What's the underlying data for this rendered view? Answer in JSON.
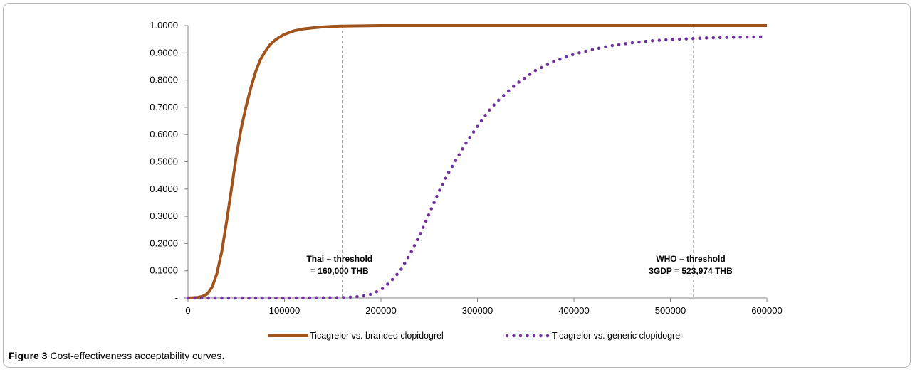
{
  "chart_data": {
    "type": "line",
    "title": "",
    "xlabel": "",
    "ylabel": "",
    "xlim": [
      0,
      600000
    ],
    "ylim": [
      0,
      1
    ],
    "x_ticks": [
      0,
      100000,
      200000,
      300000,
      400000,
      500000,
      600000
    ],
    "x_tick_labels": [
      "0",
      "100000",
      "200000",
      "300000",
      "400000",
      "500000",
      "600000"
    ],
    "y_ticks": [
      0,
      0.1,
      0.2,
      0.3,
      0.4,
      0.5,
      0.6,
      0.7,
      0.8,
      0.9,
      1.0
    ],
    "y_tick_labels": [
      "-",
      "0.1000",
      "0.2000",
      "0.3000",
      "0.4000",
      "0.5000",
      "0.6000",
      "0.7000",
      "0.8000",
      "0.9000",
      "1.0000"
    ],
    "grid": false,
    "legend_position": "bottom",
    "series": [
      {
        "name": "Ticagrelor vs. branded clopidogrel",
        "style": "solid",
        "color": "#A0541B",
        "x": [
          0,
          10000,
          15000,
          20000,
          25000,
          30000,
          35000,
          40000,
          45000,
          50000,
          55000,
          60000,
          65000,
          70000,
          75000,
          80000,
          85000,
          90000,
          95000,
          100000,
          105000,
          110000,
          120000,
          130000,
          140000,
          150000,
          160000,
          180000,
          200000,
          300000,
          400000,
          500000,
          600000
        ],
        "y": [
          0,
          0.002,
          0.006,
          0.015,
          0.04,
          0.09,
          0.17,
          0.28,
          0.4,
          0.52,
          0.62,
          0.7,
          0.77,
          0.83,
          0.875,
          0.905,
          0.93,
          0.946,
          0.958,
          0.968,
          0.975,
          0.981,
          0.988,
          0.992,
          0.995,
          0.997,
          0.998,
          0.999,
          1.0,
          1.0,
          1.0,
          1.0,
          1.0
        ]
      },
      {
        "name": "Ticagrelor vs. generic clopidogrel",
        "style": "dotted",
        "color": "#7030A0",
        "x": [
          0,
          100000,
          160000,
          180000,
          190000,
          200000,
          210000,
          220000,
          230000,
          240000,
          250000,
          260000,
          270000,
          280000,
          290000,
          300000,
          310000,
          320000,
          340000,
          360000,
          380000,
          400000,
          420000,
          440000,
          460000,
          480000,
          500000,
          520000,
          540000,
          560000,
          580000,
          600000
        ],
        "y": [
          0,
          0,
          0.001,
          0.006,
          0.014,
          0.03,
          0.06,
          0.1,
          0.16,
          0.23,
          0.31,
          0.39,
          0.46,
          0.52,
          0.58,
          0.63,
          0.68,
          0.72,
          0.785,
          0.835,
          0.87,
          0.895,
          0.913,
          0.927,
          0.937,
          0.944,
          0.949,
          0.952,
          0.955,
          0.957,
          0.958,
          0.959
        ]
      }
    ],
    "reference_lines": [
      {
        "x": 160000,
        "label_line1": "Thai – threshold",
        "label_line2": "= 160,000 THB"
      },
      {
        "x": 523974,
        "label_line1": "WHO – threshold",
        "label_line2": "3GDP = 523,974 THB"
      }
    ]
  },
  "caption": {
    "label": "Figure 3",
    "text": "Cost-effectiveness acceptability curves."
  }
}
